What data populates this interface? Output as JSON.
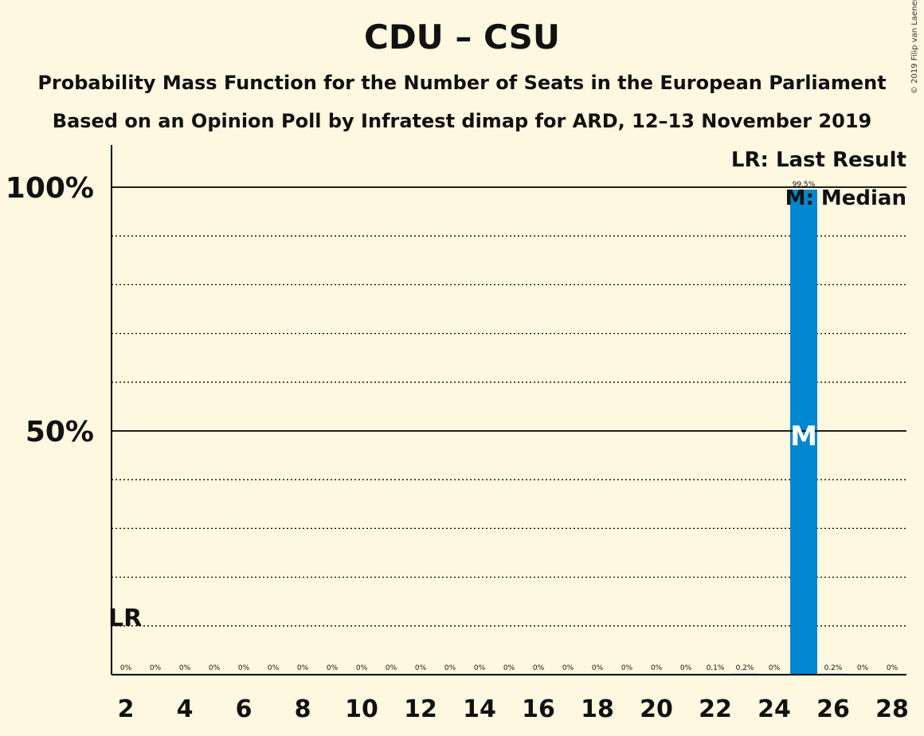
{
  "chart_data": {
    "type": "bar",
    "title": "CDU – CSU",
    "subtitle": "Probability Mass Function for the Number of Seats in the European Parliament",
    "subtitle2": "Based on an Opinion Poll by Infratest dimap for ARD, 12–13 November 2019",
    "copyright": "© 2019 Filip van Laenen",
    "x": [
      2,
      3,
      4,
      5,
      6,
      7,
      8,
      9,
      10,
      11,
      12,
      13,
      14,
      15,
      16,
      17,
      18,
      19,
      20,
      21,
      22,
      23,
      24,
      25,
      26,
      27,
      28
    ],
    "values": [
      0,
      0,
      0,
      0,
      0,
      0,
      0,
      0,
      0,
      0,
      0,
      0,
      0,
      0,
      0,
      0,
      0,
      0,
      0,
      0,
      0.1,
      0.2,
      0,
      99.5,
      0.2,
      0,
      0
    ],
    "value_labels": [
      "0%",
      "0%",
      "0%",
      "0%",
      "0%",
      "0%",
      "0%",
      "0%",
      "0%",
      "0%",
      "0%",
      "0%",
      "0%",
      "0%",
      "0%",
      "0%",
      "0%",
      "0%",
      "0%",
      "0%",
      "0.1%",
      "0.2%",
      "0%",
      "99.5%",
      "0.2%",
      "0%",
      "0%"
    ],
    "x_tick_labels": [
      "2",
      "4",
      "6",
      "8",
      "10",
      "12",
      "14",
      "16",
      "18",
      "20",
      "22",
      "24",
      "26",
      "28"
    ],
    "y_tick_labels": [
      "50%",
      "100%"
    ],
    "y_tick_values": [
      50,
      100
    ],
    "ylim": [
      0,
      110
    ],
    "grid": "dotted every 10%, solid at 50% and 100%",
    "bar_color": "#0087d0",
    "last_result": {
      "seat": 2,
      "label": "LR"
    },
    "median": {
      "seat": 25,
      "label": "M"
    },
    "legend": {
      "position": "top-right",
      "lr_text": "LR: Last Result",
      "median_text": "M: Median"
    }
  }
}
